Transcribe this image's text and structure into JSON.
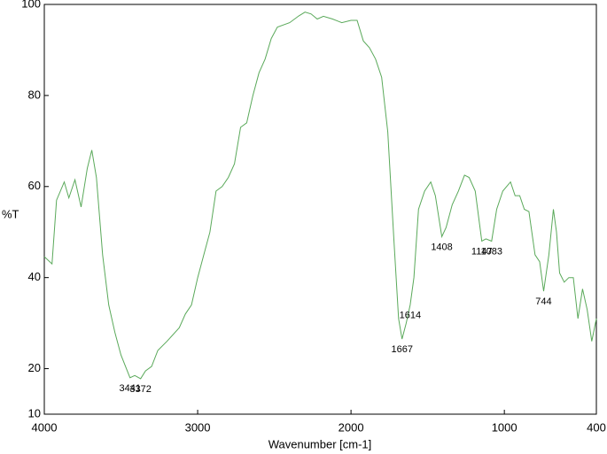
{
  "chart_data": {
    "type": "line",
    "xlabel": "Wavenumber [cm-1]",
    "ylabel": "%T",
    "color": "#5aa95a",
    "xlim": [
      4000,
      400
    ],
    "xticks": [
      4000,
      3000,
      2000,
      1000,
      400
    ],
    "ylim": [
      10,
      100
    ],
    "yticks": [
      10,
      20,
      40,
      60,
      80,
      100
    ],
    "x": [
      4000,
      3950,
      3920,
      3870,
      3840,
      3800,
      3760,
      3720,
      3690,
      3660,
      3620,
      3580,
      3540,
      3500,
      3441,
      3410,
      3372,
      3340,
      3300,
      3260,
      3200,
      3120,
      3080,
      3040,
      3000,
      2960,
      2920,
      2880,
      2840,
      2800,
      2760,
      2720,
      2680,
      2640,
      2600,
      2560,
      2520,
      2480,
      2400,
      2340,
      2300,
      2260,
      2220,
      2180,
      2120,
      2060,
      2000,
      1960,
      1920,
      1880,
      1840,
      1800,
      1760,
      1720,
      1690,
      1667,
      1640,
      1614,
      1590,
      1560,
      1520,
      1480,
      1450,
      1408,
      1380,
      1340,
      1300,
      1260,
      1230,
      1190,
      1147,
      1120,
      1083,
      1050,
      1010,
      960,
      930,
      900,
      870,
      840,
      800,
      770,
      744,
      710,
      680,
      660,
      640,
      610,
      580,
      550,
      520,
      490,
      460,
      430,
      400
    ],
    "values": [
      44.6,
      43,
      57,
      61,
      57.5,
      61.5,
      55.5,
      64,
      68,
      62,
      45,
      34,
      28,
      23,
      18,
      18.5,
      17.8,
      19.5,
      20.5,
      24,
      26,
      29,
      32,
      34,
      40,
      45,
      50,
      59,
      60,
      62,
      65,
      73,
      74,
      80,
      85,
      88,
      92.5,
      95,
      96,
      97.5,
      98.3,
      97.9,
      96.8,
      97.4,
      96.8,
      96,
      96.5,
      96.5,
      92,
      90.5,
      88,
      84,
      72,
      48,
      31,
      26.5,
      30,
      34,
      40,
      55,
      59,
      61,
      58,
      49,
      51,
      56,
      59,
      62.5,
      62,
      59,
      48,
      48.5,
      48,
      55,
      59,
      61,
      58,
      58,
      55,
      54.5,
      45,
      43.5,
      37,
      45,
      55,
      50,
      41,
      39,
      40,
      40,
      31,
      37.5,
      33,
      26,
      31
    ],
    "annotations": [
      {
        "x": 3441,
        "text": "3441"
      },
      {
        "x": 3372,
        "text": "3372"
      },
      {
        "x": 1667,
        "text": "1667"
      },
      {
        "x": 1614,
        "text": "1614"
      },
      {
        "x": 1408,
        "text": "1408"
      },
      {
        "x": 1147,
        "text": "1147"
      },
      {
        "x": 1083,
        "text": "1083"
      },
      {
        "x": 744,
        "text": "744"
      }
    ]
  }
}
